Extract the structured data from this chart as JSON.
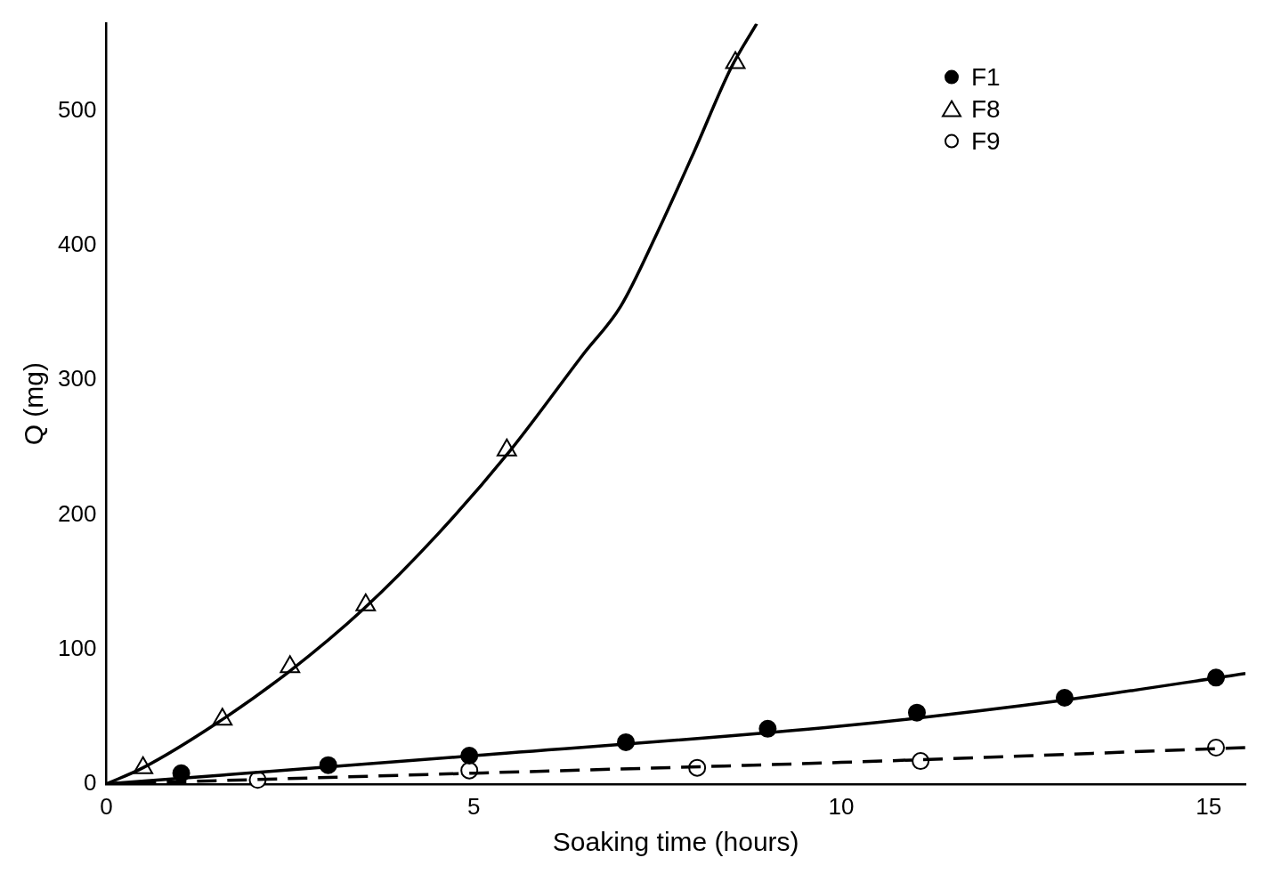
{
  "chart_data": {
    "type": "scatter",
    "xlabel": "Soaking time (hours)",
    "ylabel": "Q (mg)",
    "xlim": [
      0,
      15.5
    ],
    "ylim": [
      0,
      565
    ],
    "xticks": [
      0,
      5,
      10,
      15
    ],
    "yticks": [
      0,
      100,
      200,
      300,
      400,
      500
    ],
    "grid": false,
    "legend": "top right",
    "series": [
      {
        "type": "line",
        "color": "#000000",
        "marker": "none",
        "line_style": "solid",
        "x": [
          0,
          0.5,
          1.5,
          2.5,
          3.5,
          4.5,
          5.5,
          6.5,
          7,
          7.5,
          8,
          8.5,
          8.85
        ],
        "values": [
          0,
          12,
          45,
          84,
          130,
          185,
          248,
          320,
          355,
          410,
          470,
          532,
          565
        ]
      },
      {
        "type": "line",
        "color": "#000000",
        "marker": "none",
        "line_style": "solid",
        "x": [
          0,
          5,
          10,
          13,
          15.5
        ],
        "values": [
          0,
          21,
          43,
          62,
          82
        ]
      },
      {
        "type": "line",
        "color": "#000000",
        "marker": "none",
        "line_style": "dashed",
        "x": [
          0,
          5,
          10,
          15.5
        ],
        "values": [
          0,
          8,
          16,
          27
        ]
      },
      {
        "name": "F1",
        "type": "scatter",
        "color": "#000000",
        "marker": "circle",
        "x": [
          1.02,
          3.02,
          4.94,
          7.07,
          9.0,
          11.03,
          13.04,
          15.1
        ],
        "values": [
          8,
          14,
          21,
          31,
          41,
          53,
          64,
          79
        ]
      },
      {
        "name": "F8",
        "type": "scatter",
        "color": "#ffffff",
        "marker": "triangle",
        "x": [
          0.5,
          1.58,
          2.5,
          3.53,
          5.45,
          8.56
        ],
        "values": [
          12,
          48,
          87,
          133,
          248,
          536
        ]
      },
      {
        "name": "F9",
        "type": "scatter",
        "color": "#ffffff",
        "marker": "circle",
        "x": [
          2.06,
          4.94,
          8.04,
          11.08,
          15.1
        ],
        "values": [
          3,
          10,
          12,
          17,
          27
        ]
      }
    ]
  }
}
